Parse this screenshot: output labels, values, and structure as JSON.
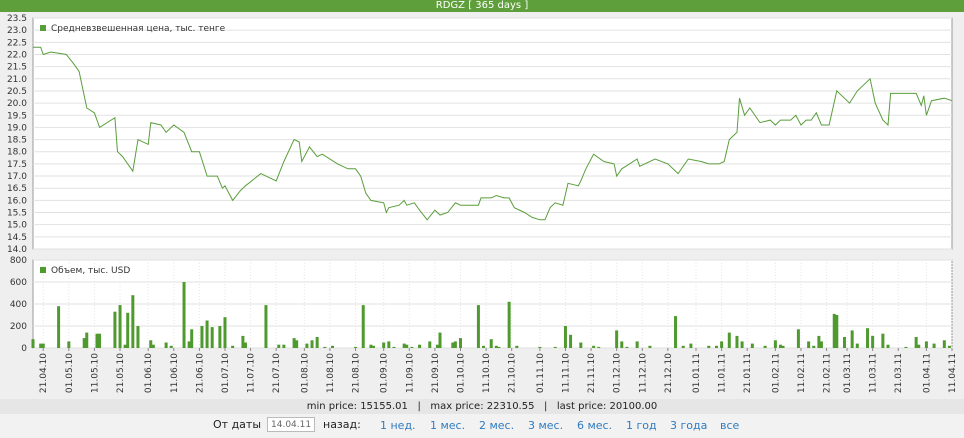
{
  "header": {
    "title": "RDGZ [ 365 days ]"
  },
  "chart_data": [
    {
      "type": "line",
      "xlim": [
        "17.04.10",
        "11.04.11"
      ],
      "ylim": [
        14,
        23.5
      ],
      "yticks": [
        {
          "value": 14,
          "label": "14.0"
        },
        14.5,
        {
          "value": 15,
          "label": "15.0"
        },
        15.5,
        {
          "value": 16,
          "label": "16.0"
        },
        16.5,
        {
          "value": 17,
          "label": "17.0"
        },
        17.5,
        {
          "value": 18,
          "label": "18.0"
        },
        18.5,
        {
          "value": 19,
          "label": "19.0"
        },
        19.5,
        {
          "value": 20,
          "label": "20.0"
        },
        20.5,
        {
          "value": 21,
          "label": "21.0"
        },
        21.5,
        {
          "value": 22,
          "label": "22.0"
        },
        22.5,
        {
          "value": 23,
          "label": "23.0"
        },
        23.5
      ],
      "grid": true,
      "x": [
        "17.04.10",
        "20.04.10",
        "21.04.10",
        "24.04.10",
        "30.04.10",
        "03.05.10",
        "05.05.10",
        "08.05.10",
        "11.05.10",
        "13.05.10",
        "19.05.10",
        "20.05.10",
        "22.05.10",
        "26.05.10",
        "28.05.10",
        "01.06.10",
        "02.06.10",
        "06.06.10",
        "08.06.10",
        "11.06.10",
        "15.06.10",
        "18.06.10",
        "21.06.10",
        "24.06.10",
        "28.06.10",
        "30.06.10",
        "01.07.10",
        "04.07.10",
        "07.07.10",
        "09.07.10",
        "15.07.10",
        "21.07.10",
        "24.07.10",
        "28.07.10",
        "30.07.10",
        "31.07.10",
        "03.08.10",
        "06.08.10",
        "08.08.10",
        "14.08.10",
        "18.08.10",
        "21.08.10",
        "23.08.10",
        "25.08.10",
        "27.08.10",
        "01.09.10",
        "02.09.10",
        "03.09.10",
        "07.09.10",
        "09.09.10",
        "10.09.10",
        "13.09.10",
        "15.09.10",
        "18.09.10",
        "21.09.10",
        "23.09.10",
        "26.09.10",
        "29.09.10",
        "01.10.10",
        "08.10.10",
        "09.10.10",
        "13.10.10",
        "15.10.10",
        "18.10.10",
        "20.10.10",
        "22.10.10",
        "26.10.10",
        "29.10.10",
        "01.11.10",
        "03.11.10",
        "05.11.10",
        "07.11.10",
        "10.11.10",
        "12.11.10",
        "16.11.10",
        "17.11.10",
        "19.11.10",
        "22.11.10",
        "26.11.10",
        "30.11.10",
        "01.12.10",
        "03.12.10",
        "06.12.10",
        "09.12.10",
        "10.12.10",
        "16.12.10",
        "21.12.10",
        "25.12.10",
        "29.12.10",
        "03.01.11",
        "06.01.11",
        "10.01.11",
        "12.01.11",
        "14.01.11",
        "17.01.11",
        "18.01.11",
        "20.01.11",
        "22.01.11",
        "26.01.11",
        "30.01.11",
        "01.02.11",
        "03.02.11",
        "07.02.11",
        "09.02.11",
        "11.02.11",
        "13.02.11",
        "15.02.11",
        "17.02.11",
        "19.02.11",
        "22.02.11",
        "25.02.11",
        "27.02.11",
        "02.03.11",
        "05.03.11",
        "10.03.11",
        "12.03.11",
        "15.03.11",
        "17.03.11",
        "18.03.11",
        "28.03.11",
        "30.03.11",
        "31.03.11",
        "01.04.11",
        "03.04.11",
        "08.04.11",
        "11.04.11"
      ],
      "series": [
        {
          "name": "Средневзвешенная цена, тыс. тенге",
          "color": "#5a9e3c",
          "values": [
            22.3,
            22.3,
            22.0,
            22.1,
            22.0,
            21.6,
            21.3,
            19.8,
            19.6,
            19.0,
            19.4,
            18.0,
            17.8,
            17.2,
            18.5,
            18.3,
            19.2,
            19.1,
            18.8,
            19.1,
            18.8,
            18.0,
            18.0,
            17.0,
            17.0,
            16.5,
            16.6,
            16.0,
            16.4,
            16.6,
            17.1,
            16.8,
            17.6,
            18.5,
            18.4,
            17.6,
            18.2,
            17.8,
            17.9,
            17.5,
            17.3,
            17.3,
            17.0,
            16.3,
            16.0,
            15.9,
            15.5,
            15.7,
            15.8,
            16.0,
            15.8,
            15.9,
            15.6,
            15.2,
            15.6,
            15.4,
            15.5,
            15.9,
            15.8,
            15.8,
            16.1,
            16.1,
            16.2,
            16.1,
            16.1,
            15.7,
            15.5,
            15.3,
            15.2,
            15.2,
            15.7,
            15.9,
            15.8,
            16.7,
            16.6,
            16.8,
            17.3,
            17.9,
            17.6,
            17.5,
            17.0,
            17.3,
            17.5,
            17.7,
            17.4,
            17.7,
            17.5,
            17.1,
            17.7,
            17.6,
            17.5,
            17.5,
            17.6,
            18.5,
            18.8,
            20.2,
            19.5,
            19.8,
            19.2,
            19.3,
            19.1,
            19.3,
            19.3,
            19.5,
            19.1,
            19.3,
            19.3,
            19.6,
            19.1,
            19.1,
            20.5,
            20.3,
            20.0,
            20.5,
            21.0,
            20.0,
            19.3,
            19.1,
            20.4,
            20.4,
            19.9,
            20.3,
            19.5,
            20.1,
            20.2,
            20.1
          ]
        }
      ]
    },
    {
      "type": "bar",
      "xlim": [
        "17.04.10",
        "11.04.11"
      ],
      "ylim": [
        0,
        800
      ],
      "yticks": [
        0,
        200,
        400,
        600,
        800
      ],
      "grid": true,
      "xticks": [
        "21.04.10",
        "01.05.10",
        "11.05.10",
        "21.05.10",
        "01.06.10",
        "11.06.10",
        "21.06.10",
        "01.07.10",
        "11.07.10",
        "21.07.10",
        "01.08.10",
        "11.08.10",
        "21.08.10",
        "01.09.10",
        "11.09.10",
        "21.09.10",
        "01.10.10",
        "11.10.10",
        "21.10.10",
        "01.11.10",
        "11.11.10",
        "21.11.10",
        "01.12.10",
        "11.12.10",
        "21.12.10",
        "01.01.11",
        "11.01.11",
        "21.01.11",
        "01.02.11",
        "11.02.11",
        "21.02.11",
        "01.03.11",
        "11.03.11",
        "21.03.11",
        "01.04.11",
        "11.04.11"
      ],
      "x": [
        "17.04.10",
        "20.04.10",
        "21.04.10",
        "27.04.10",
        "01.05.10",
        "07.05.10",
        "08.05.10",
        "12.05.10",
        "13.05.10",
        "19.05.10",
        "21.05.10",
        "23.05.10",
        "24.05.10",
        "26.05.10",
        "28.05.10",
        "02.06.10",
        "03.06.10",
        "08.06.10",
        "10.06.10",
        "15.06.10",
        "17.06.10",
        "18.06.10",
        "22.06.10",
        "24.06.10",
        "26.06.10",
        "29.06.10",
        "01.07.10",
        "04.07.10",
        "08.07.10",
        "09.07.10",
        "17.07.10",
        "22.07.10",
        "24.07.10",
        "28.07.10",
        "29.07.10",
        "02.08.10",
        "04.08.10",
        "06.08.10",
        "09.08.10",
        "12.08.10",
        "21.08.10",
        "24.08.10",
        "27.08.10",
        "28.08.10",
        "01.09.10",
        "03.09.10",
        "05.09.10",
        "09.09.10",
        "10.09.10",
        "12.09.10",
        "15.09.10",
        "19.09.10",
        "22.09.10",
        "23.09.10",
        "28.09.10",
        "29.09.10",
        "01.10.10",
        "08.10.10",
        "10.10.10",
        "13.10.10",
        "15.10.10",
        "16.10.10",
        "20.10.10",
        "23.10.10",
        "01.11.10",
        "07.11.10",
        "11.11.10",
        "13.11.10",
        "17.11.10",
        "22.11.10",
        "24.11.10",
        "01.12.10",
        "03.12.10",
        "05.12.10",
        "09.12.10",
        "14.12.10",
        "24.12.10",
        "27.12.10",
        "30.12.10",
        "06.01.11",
        "09.01.11",
        "11.01.11",
        "14.01.11",
        "17.01.11",
        "19.01.11",
        "23.01.11",
        "28.01.11",
        "01.02.11",
        "03.02.11",
        "04.02.11",
        "10.02.11",
        "14.02.11",
        "16.02.11",
        "18.02.11",
        "19.02.11",
        "24.02.11",
        "25.02.11",
        "28.02.11",
        "03.03.11",
        "05.03.11",
        "09.03.11",
        "11.03.11",
        "15.03.11",
        "17.03.11",
        "24.03.11",
        "28.03.11",
        "29.03.11",
        "01.04.11",
        "04.04.11",
        "08.04.11",
        "10.04.11"
      ],
      "series": [
        {
          "name": "Объем, тыс. USD",
          "color": "#4f9a2f",
          "values": [
            80,
            40,
            40,
            380,
            60,
            90,
            140,
            130,
            130,
            330,
            390,
            30,
            320,
            480,
            200,
            70,
            30,
            50,
            20,
            600,
            60,
            170,
            200,
            250,
            190,
            200,
            280,
            20,
            110,
            50,
            390,
            30,
            30,
            90,
            70,
            40,
            70,
            100,
            10,
            20,
            10,
            390,
            30,
            20,
            50,
            60,
            10,
            40,
            30,
            10,
            30,
            60,
            30,
            140,
            50,
            60,
            90,
            390,
            20,
            80,
            20,
            10,
            420,
            20,
            10,
            10,
            200,
            120,
            50,
            20,
            10,
            160,
            60,
            10,
            60,
            20,
            290,
            20,
            40,
            20,
            20,
            60,
            140,
            110,
            60,
            40,
            20,
            70,
            30,
            20,
            170,
            60,
            20,
            110,
            60,
            310,
            300,
            100,
            160,
            40,
            180,
            110,
            130,
            30,
            10,
            100,
            30,
            60,
            40,
            70,
            20
          ]
        }
      ]
    }
  ],
  "stats": {
    "text": "min price: 15155.01   |   max price: 22310.55   |   last price: 20100.00"
  },
  "controls": {
    "from_label": "От даты",
    "date_input": "14.04.11",
    "back_label": "назад:",
    "periods": [
      "1 нед.",
      "1 мес.",
      "2 мес.",
      "3 мес.",
      "6 мес.",
      "1 год",
      "3 года",
      "все"
    ]
  }
}
